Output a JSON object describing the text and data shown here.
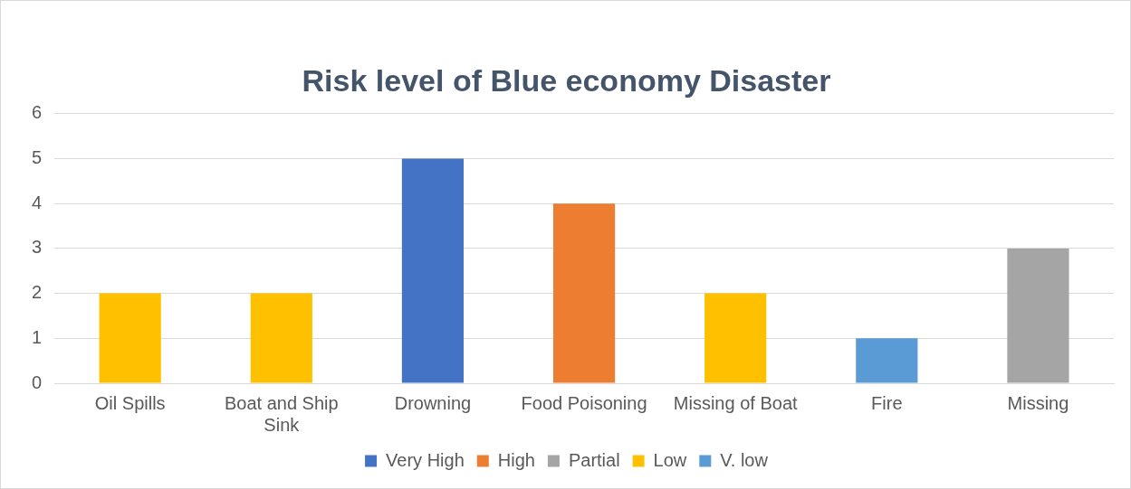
{
  "chart_data": {
    "type": "bar",
    "title": "Risk level of Blue economy Disaster",
    "categories": [
      "Oil Spills",
      "Boat and Ship Sink",
      "Drowning",
      "Food Poisoning",
      "Missing of Boat",
      "Fire",
      "Missing"
    ],
    "series": [
      {
        "name": "Very High",
        "color": "#4472c4",
        "values": [
          null,
          null,
          5,
          null,
          null,
          null,
          null
        ]
      },
      {
        "name": "High",
        "color": "#ed7d31",
        "values": [
          null,
          null,
          null,
          4,
          null,
          null,
          null
        ]
      },
      {
        "name": "Partial",
        "color": "#a5a5a5",
        "values": [
          null,
          null,
          null,
          null,
          null,
          null,
          3
        ]
      },
      {
        "name": "Low",
        "color": "#ffc000",
        "values": [
          2,
          2,
          null,
          null,
          2,
          null,
          null
        ]
      },
      {
        "name": "V. low",
        "color": "#5b9bd5",
        "values": [
          null,
          null,
          null,
          null,
          null,
          1,
          null
        ]
      }
    ],
    "ylim": [
      0,
      6
    ],
    "yticks": [
      0,
      1,
      2,
      3,
      4,
      5,
      6
    ],
    "grid": "y",
    "legend": "bottom"
  }
}
